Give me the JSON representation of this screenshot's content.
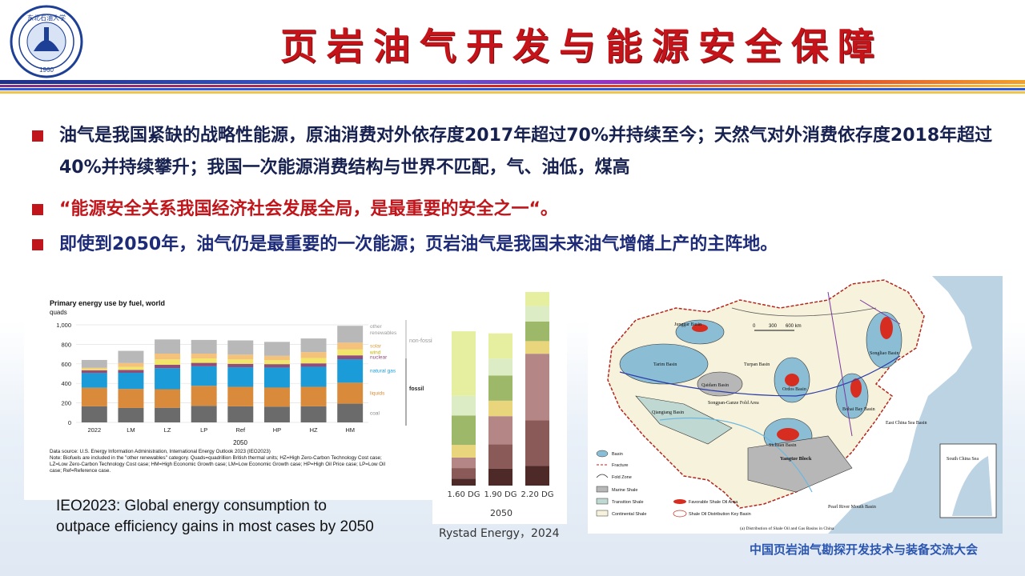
{
  "header": {
    "title": "页岩油气开发与能源安全保障",
    "logo": {
      "top_text": "东北石油大学",
      "bottom_text": "1960",
      "ring_text": "NORTHEAST PETROLEUM UNIVERSITY"
    }
  },
  "bullets": [
    {
      "text": "油气是我国紧缺的战略性能源，原油消费对外依存度2017年超过70%并持续至今；天然气对外消费依存度2018年超过40%并持续攀升；我国一次能源消费结构与世界不匹配，气、油低，煤高"
    },
    {
      "text": "“能源安全关系我国经济社会发展全局，是最重要的安全之一“。"
    },
    {
      "text": "即使到2050年，油气仍是最重要的一次能源；页岩油气是我国未来油气增储上产的主阵地。"
    }
  ],
  "fig1": {
    "caption_lines": [
      "IEO2023: Global energy consumption to",
      "outpace efficiency gains in most cases by 2050"
    ]
  },
  "fig2": {
    "caption": "Rystad Energy，2024"
  },
  "fig3": {
    "scale": [
      "0",
      "300",
      "600 km"
    ],
    "legend": [
      "Basin",
      "Fracture",
      "Fold Zone",
      "Marine Shale",
      "Transition Shale",
      "Continental Shale",
      "Favorable Shale Oil Area",
      "Shale Oil Distribution Key Basin"
    ],
    "labels": [
      "Junggar Basin",
      "Tarim Basin",
      "Turpan Basin",
      "Qaidam Basin",
      "Ordos Basin",
      "Sichuan Basin",
      "Songliao Basin",
      "Bohai Bay Basin",
      "Yangtze Block",
      "South China Sea",
      "Qiangtang Basin",
      "Songpan-Ganze Fold Area",
      "East China Sea Basin",
      "Pearl River Mouth Basin"
    ],
    "caption": "(a) Distribution of Shale Oil and Gas Basins in China"
  },
  "footer": {
    "conference": "中国页岩油气勘探开发技术与装备交流大会"
  },
  "chart_data": [
    {
      "type": "bar",
      "stacked": true,
      "title": "Primary energy use by fuel, world",
      "ylabel": "quads",
      "xlabel": "2050",
      "ylim": [
        0,
        1000
      ],
      "yticks": [
        "1,000",
        "800",
        "600",
        "400",
        "200",
        "0"
      ],
      "categories": [
        "2022",
        "LM",
        "LZ",
        "LP",
        "Ref",
        "HP",
        "HZ",
        "HM"
      ],
      "series": [
        {
          "name": "coal",
          "color": "#6b6b6b",
          "values": [
            165,
            148,
            150,
            170,
            165,
            162,
            165,
            192
          ]
        },
        {
          "name": "liquids",
          "color": "#d98a3b",
          "values": [
            190,
            195,
            190,
            205,
            200,
            195,
            200,
            215
          ]
        },
        {
          "name": "natural gas",
          "color": "#1b9bd7",
          "values": [
            150,
            165,
            215,
            200,
            200,
            205,
            205,
            240
          ]
        },
        {
          "name": "nuclear",
          "color": "#8f4f7a",
          "values": [
            30,
            30,
            35,
            35,
            35,
            35,
            35,
            40
          ]
        },
        {
          "name": "wind",
          "color": "#f2e66a",
          "values": [
            15,
            30,
            55,
            45,
            45,
            40,
            55,
            60
          ]
        },
        {
          "name": "solar",
          "color": "#f4c27a",
          "values": [
            10,
            40,
            60,
            50,
            50,
            45,
            60,
            70
          ]
        },
        {
          "name": "other renewables",
          "color": "#b8b8b8",
          "values": [
            80,
            125,
            145,
            140,
            145,
            143,
            140,
            173
          ]
        }
      ],
      "legend_groups": [
        "non-fossil",
        "fossil"
      ],
      "notes": [
        "Data source: U.S. Energy Information Administration, International Energy Outlook 2023 (IEO2023)",
        "Note: Biofuels are included in the \"other renewables\" category. Quads=quadrillion British thermal units; HZ=High Zero-Carbon Technology Cost case;",
        "LZ=Low Zero-Carbon Technology Cost case; HM=High Economic Growth case; LM=Low Economic Growth case; HP=High Oil Price case; LP=Low Oil",
        "case; Ref=Reference case."
      ]
    },
    {
      "type": "bar",
      "stacked": true,
      "xlabel": "2050",
      "categories": [
        "1.60 DG",
        "1.90 DG",
        "2.20 DG"
      ],
      "segments": [
        {
          "color": "#4d2a28",
          "values": [
            10,
            24,
            28
          ]
        },
        {
          "color": "#8a5a58",
          "values": [
            15,
            35,
            65
          ]
        },
        {
          "color": "#b58686",
          "values": [
            15,
            40,
            95
          ]
        },
        {
          "color": "#e9d67c",
          "values": [
            18,
            22,
            18
          ]
        },
        {
          "color": "#9eb86a",
          "values": [
            42,
            36,
            28
          ]
        },
        {
          "color": "#dcecc4",
          "values": [
            28,
            24,
            22
          ]
        },
        {
          "color": "#e6eea0",
          "values": [
            92,
            36,
            20
          ]
        }
      ]
    }
  ]
}
